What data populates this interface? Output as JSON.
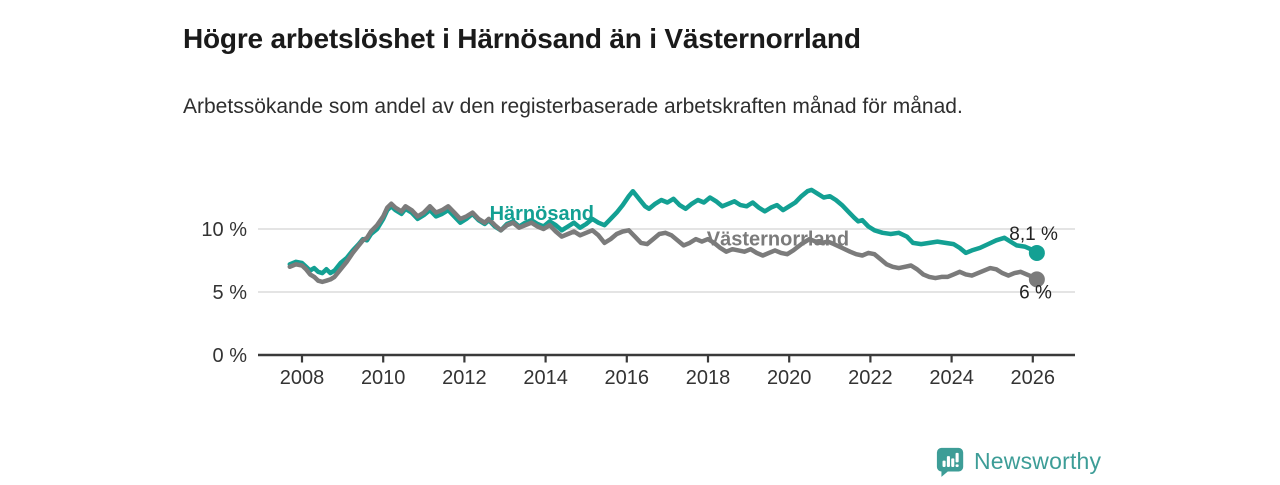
{
  "header": {
    "title": "Högre arbetslöshet i Härnösand än i Västernorrland",
    "subtitle": "Arbetssökande som andel av den registerbaserade arbetskraften månad för månad."
  },
  "footer": {
    "brand": "Newsworthy",
    "logo_icon": "bar-chart-speech-bubble-icon"
  },
  "colors": {
    "harnosand": "#13a093",
    "vasternorrland": "#7b7b7b",
    "grid": "#dcdcdc",
    "axis": "#3a3a3a",
    "tick_text": "#333333",
    "title_text": "#1a1a1a",
    "brand_teal": "#3d9d97"
  },
  "chart_data": {
    "type": "line",
    "title": "Högre arbetslöshet i Härnösand än i Västernorrland",
    "subtitle": "Arbetssökande som andel av den registerbaserade arbetskraften månad för månad.",
    "unit": "%",
    "grid": "horizontal",
    "legend_position": "inline-labels",
    "x_axis": {
      "ticks": [
        2008,
        2010,
        2012,
        2014,
        2016,
        2018,
        2020,
        2022,
        2024,
        2026
      ],
      "range": [
        2007.6,
        2027.0
      ]
    },
    "y_axis": {
      "ticks": [
        {
          "value": 0,
          "label": "0 %"
        },
        {
          "value": 5,
          "label": "5 %"
        },
        {
          "value": 10,
          "label": "10 %"
        }
      ],
      "range": [
        0,
        14
      ]
    },
    "series": [
      {
        "name": "Härnösand",
        "color": "#13a093",
        "end_label": "8,1 %",
        "end_value": 8.1,
        "label_pos": [
          2012.62,
          10.7
        ],
        "label_side": "above",
        "points": [
          [
            2007.7,
            7.2
          ],
          [
            2007.85,
            7.4
          ],
          [
            2008.0,
            7.3
          ],
          [
            2008.1,
            7.0
          ],
          [
            2008.2,
            6.7
          ],
          [
            2008.3,
            6.9
          ],
          [
            2008.4,
            6.6
          ],
          [
            2008.5,
            6.5
          ],
          [
            2008.6,
            6.8
          ],
          [
            2008.7,
            6.5
          ],
          [
            2008.8,
            6.7
          ],
          [
            2008.95,
            7.3
          ],
          [
            2009.1,
            7.7
          ],
          [
            2009.25,
            8.3
          ],
          [
            2009.4,
            8.8
          ],
          [
            2009.5,
            9.2
          ],
          [
            2009.6,
            9.1
          ],
          [
            2009.7,
            9.6
          ],
          [
            2009.85,
            10.0
          ],
          [
            2010.0,
            10.8
          ],
          [
            2010.1,
            11.5
          ],
          [
            2010.2,
            11.8
          ],
          [
            2010.3,
            11.5
          ],
          [
            2010.45,
            11.2
          ],
          [
            2010.55,
            11.6
          ],
          [
            2010.7,
            11.3
          ],
          [
            2010.85,
            10.8
          ],
          [
            2011.0,
            11.1
          ],
          [
            2011.15,
            11.5
          ],
          [
            2011.3,
            11.0
          ],
          [
            2011.45,
            11.2
          ],
          [
            2011.6,
            11.5
          ],
          [
            2011.75,
            11.0
          ],
          [
            2011.9,
            10.5
          ],
          [
            2012.05,
            10.8
          ],
          [
            2012.2,
            11.2
          ],
          [
            2012.35,
            10.7
          ],
          [
            2012.5,
            10.4
          ],
          [
            2012.6,
            10.7
          ],
          [
            2012.75,
            10.2
          ],
          [
            2012.9,
            9.9
          ],
          [
            2013.05,
            10.4
          ],
          [
            2013.2,
            10.6
          ],
          [
            2013.35,
            10.2
          ],
          [
            2013.5,
            10.5
          ],
          [
            2013.65,
            10.7
          ],
          [
            2013.8,
            10.4
          ],
          [
            2013.95,
            10.2
          ],
          [
            2014.1,
            10.6
          ],
          [
            2014.25,
            10.3
          ],
          [
            2014.4,
            9.9
          ],
          [
            2014.55,
            10.2
          ],
          [
            2014.7,
            10.5
          ],
          [
            2014.85,
            10.1
          ],
          [
            2015.0,
            10.4
          ],
          [
            2015.15,
            10.8
          ],
          [
            2015.3,
            10.5
          ],
          [
            2015.45,
            10.3
          ],
          [
            2015.6,
            10.8
          ],
          [
            2015.75,
            11.3
          ],
          [
            2015.9,
            11.9
          ],
          [
            2016.05,
            12.6
          ],
          [
            2016.15,
            13.0
          ],
          [
            2016.3,
            12.4
          ],
          [
            2016.45,
            11.8
          ],
          [
            2016.55,
            11.6
          ],
          [
            2016.7,
            12.0
          ],
          [
            2016.85,
            12.3
          ],
          [
            2017.0,
            12.1
          ],
          [
            2017.15,
            12.4
          ],
          [
            2017.3,
            11.9
          ],
          [
            2017.45,
            11.6
          ],
          [
            2017.6,
            12.0
          ],
          [
            2017.75,
            12.3
          ],
          [
            2017.9,
            12.1
          ],
          [
            2018.05,
            12.5
          ],
          [
            2018.2,
            12.2
          ],
          [
            2018.35,
            11.8
          ],
          [
            2018.5,
            12.0
          ],
          [
            2018.65,
            12.2
          ],
          [
            2018.8,
            11.9
          ],
          [
            2018.95,
            11.8
          ],
          [
            2019.1,
            12.1
          ],
          [
            2019.25,
            11.7
          ],
          [
            2019.4,
            11.4
          ],
          [
            2019.55,
            11.7
          ],
          [
            2019.7,
            11.9
          ],
          [
            2019.85,
            11.5
          ],
          [
            2020.0,
            11.8
          ],
          [
            2020.15,
            12.1
          ],
          [
            2020.3,
            12.6
          ],
          [
            2020.45,
            13.0
          ],
          [
            2020.55,
            13.1
          ],
          [
            2020.7,
            12.8
          ],
          [
            2020.85,
            12.5
          ],
          [
            2021.0,
            12.6
          ],
          [
            2021.15,
            12.3
          ],
          [
            2021.3,
            11.9
          ],
          [
            2021.45,
            11.4
          ],
          [
            2021.6,
            10.9
          ],
          [
            2021.7,
            10.6
          ],
          [
            2021.8,
            10.7
          ],
          [
            2021.95,
            10.2
          ],
          [
            2022.1,
            9.9
          ],
          [
            2022.3,
            9.7
          ],
          [
            2022.5,
            9.6
          ],
          [
            2022.7,
            9.7
          ],
          [
            2022.9,
            9.4
          ],
          [
            2023.05,
            8.9
          ],
          [
            2023.25,
            8.8
          ],
          [
            2023.45,
            8.9
          ],
          [
            2023.65,
            9.0
          ],
          [
            2023.85,
            8.9
          ],
          [
            2024.05,
            8.8
          ],
          [
            2024.2,
            8.5
          ],
          [
            2024.35,
            8.1
          ],
          [
            2024.5,
            8.3
          ],
          [
            2024.7,
            8.5
          ],
          [
            2024.9,
            8.8
          ],
          [
            2025.1,
            9.1
          ],
          [
            2025.3,
            9.3
          ],
          [
            2025.45,
            9.0
          ],
          [
            2025.6,
            8.7
          ],
          [
            2025.8,
            8.6
          ],
          [
            2025.95,
            8.4
          ],
          [
            2026.1,
            8.1
          ]
        ]
      },
      {
        "name": "Västernorrland",
        "color": "#7b7b7b",
        "end_label": "6 %",
        "end_value": 6.0,
        "label_pos": [
          2017.97,
          8.7
        ],
        "label_side": "below",
        "points": [
          [
            2007.7,
            7.0
          ],
          [
            2007.85,
            7.2
          ],
          [
            2008.0,
            7.1
          ],
          [
            2008.1,
            6.8
          ],
          [
            2008.2,
            6.4
          ],
          [
            2008.3,
            6.2
          ],
          [
            2008.4,
            5.9
          ],
          [
            2008.5,
            5.8
          ],
          [
            2008.6,
            5.9
          ],
          [
            2008.7,
            6.0
          ],
          [
            2008.8,
            6.2
          ],
          [
            2008.95,
            6.8
          ],
          [
            2009.1,
            7.4
          ],
          [
            2009.25,
            8.1
          ],
          [
            2009.4,
            8.7
          ],
          [
            2009.5,
            9.1
          ],
          [
            2009.6,
            9.3
          ],
          [
            2009.7,
            9.8
          ],
          [
            2009.85,
            10.3
          ],
          [
            2010.0,
            11.0
          ],
          [
            2010.1,
            11.7
          ],
          [
            2010.2,
            12.0
          ],
          [
            2010.3,
            11.7
          ],
          [
            2010.45,
            11.4
          ],
          [
            2010.55,
            11.8
          ],
          [
            2010.7,
            11.5
          ],
          [
            2010.85,
            11.0
          ],
          [
            2011.0,
            11.3
          ],
          [
            2011.15,
            11.8
          ],
          [
            2011.3,
            11.3
          ],
          [
            2011.45,
            11.5
          ],
          [
            2011.6,
            11.8
          ],
          [
            2011.75,
            11.3
          ],
          [
            2011.9,
            10.8
          ],
          [
            2012.05,
            11.0
          ],
          [
            2012.2,
            11.3
          ],
          [
            2012.35,
            10.8
          ],
          [
            2012.5,
            10.5
          ],
          [
            2012.6,
            10.8
          ],
          [
            2012.75,
            10.3
          ],
          [
            2012.9,
            9.9
          ],
          [
            2013.05,
            10.3
          ],
          [
            2013.2,
            10.5
          ],
          [
            2013.35,
            10.1
          ],
          [
            2013.5,
            10.3
          ],
          [
            2013.65,
            10.5
          ],
          [
            2013.8,
            10.2
          ],
          [
            2013.95,
            10.0
          ],
          [
            2014.1,
            10.3
          ],
          [
            2014.25,
            9.8
          ],
          [
            2014.4,
            9.4
          ],
          [
            2014.55,
            9.6
          ],
          [
            2014.7,
            9.8
          ],
          [
            2014.85,
            9.5
          ],
          [
            2015.0,
            9.7
          ],
          [
            2015.15,
            9.9
          ],
          [
            2015.3,
            9.5
          ],
          [
            2015.45,
            8.9
          ],
          [
            2015.6,
            9.2
          ],
          [
            2015.75,
            9.6
          ],
          [
            2015.9,
            9.8
          ],
          [
            2016.05,
            9.9
          ],
          [
            2016.2,
            9.4
          ],
          [
            2016.35,
            8.9
          ],
          [
            2016.5,
            8.8
          ],
          [
            2016.65,
            9.2
          ],
          [
            2016.8,
            9.6
          ],
          [
            2016.95,
            9.7
          ],
          [
            2017.1,
            9.5
          ],
          [
            2017.25,
            9.1
          ],
          [
            2017.4,
            8.7
          ],
          [
            2017.55,
            8.9
          ],
          [
            2017.7,
            9.2
          ],
          [
            2017.85,
            9.0
          ],
          [
            2018.0,
            9.2
          ],
          [
            2018.15,
            8.9
          ],
          [
            2018.3,
            8.5
          ],
          [
            2018.45,
            8.2
          ],
          [
            2018.6,
            8.4
          ],
          [
            2018.75,
            8.3
          ],
          [
            2018.9,
            8.2
          ],
          [
            2019.05,
            8.4
          ],
          [
            2019.2,
            8.1
          ],
          [
            2019.35,
            7.9
          ],
          [
            2019.5,
            8.1
          ],
          [
            2019.65,
            8.3
          ],
          [
            2019.8,
            8.1
          ],
          [
            2019.95,
            8.0
          ],
          [
            2020.1,
            8.3
          ],
          [
            2020.3,
            8.8
          ],
          [
            2020.5,
            9.2
          ],
          [
            2020.65,
            9.0
          ],
          [
            2020.8,
            8.9
          ],
          [
            2020.95,
            9.0
          ],
          [
            2021.1,
            8.8
          ],
          [
            2021.3,
            8.5
          ],
          [
            2021.5,
            8.2
          ],
          [
            2021.65,
            8.0
          ],
          [
            2021.8,
            7.9
          ],
          [
            2021.95,
            8.1
          ],
          [
            2022.1,
            8.0
          ],
          [
            2022.25,
            7.6
          ],
          [
            2022.4,
            7.2
          ],
          [
            2022.55,
            7.0
          ],
          [
            2022.7,
            6.9
          ],
          [
            2022.85,
            7.0
          ],
          [
            2023.0,
            7.1
          ],
          [
            2023.15,
            6.8
          ],
          [
            2023.3,
            6.4
          ],
          [
            2023.45,
            6.2
          ],
          [
            2023.6,
            6.1
          ],
          [
            2023.75,
            6.2
          ],
          [
            2023.9,
            6.2
          ],
          [
            2024.05,
            6.4
          ],
          [
            2024.2,
            6.6
          ],
          [
            2024.35,
            6.4
          ],
          [
            2024.5,
            6.3
          ],
          [
            2024.65,
            6.5
          ],
          [
            2024.8,
            6.7
          ],
          [
            2024.95,
            6.9
          ],
          [
            2025.1,
            6.8
          ],
          [
            2025.25,
            6.5
          ],
          [
            2025.4,
            6.3
          ],
          [
            2025.55,
            6.5
          ],
          [
            2025.7,
            6.6
          ],
          [
            2025.85,
            6.4
          ],
          [
            2026.0,
            6.2
          ],
          [
            2026.1,
            6.0
          ]
        ]
      }
    ]
  }
}
